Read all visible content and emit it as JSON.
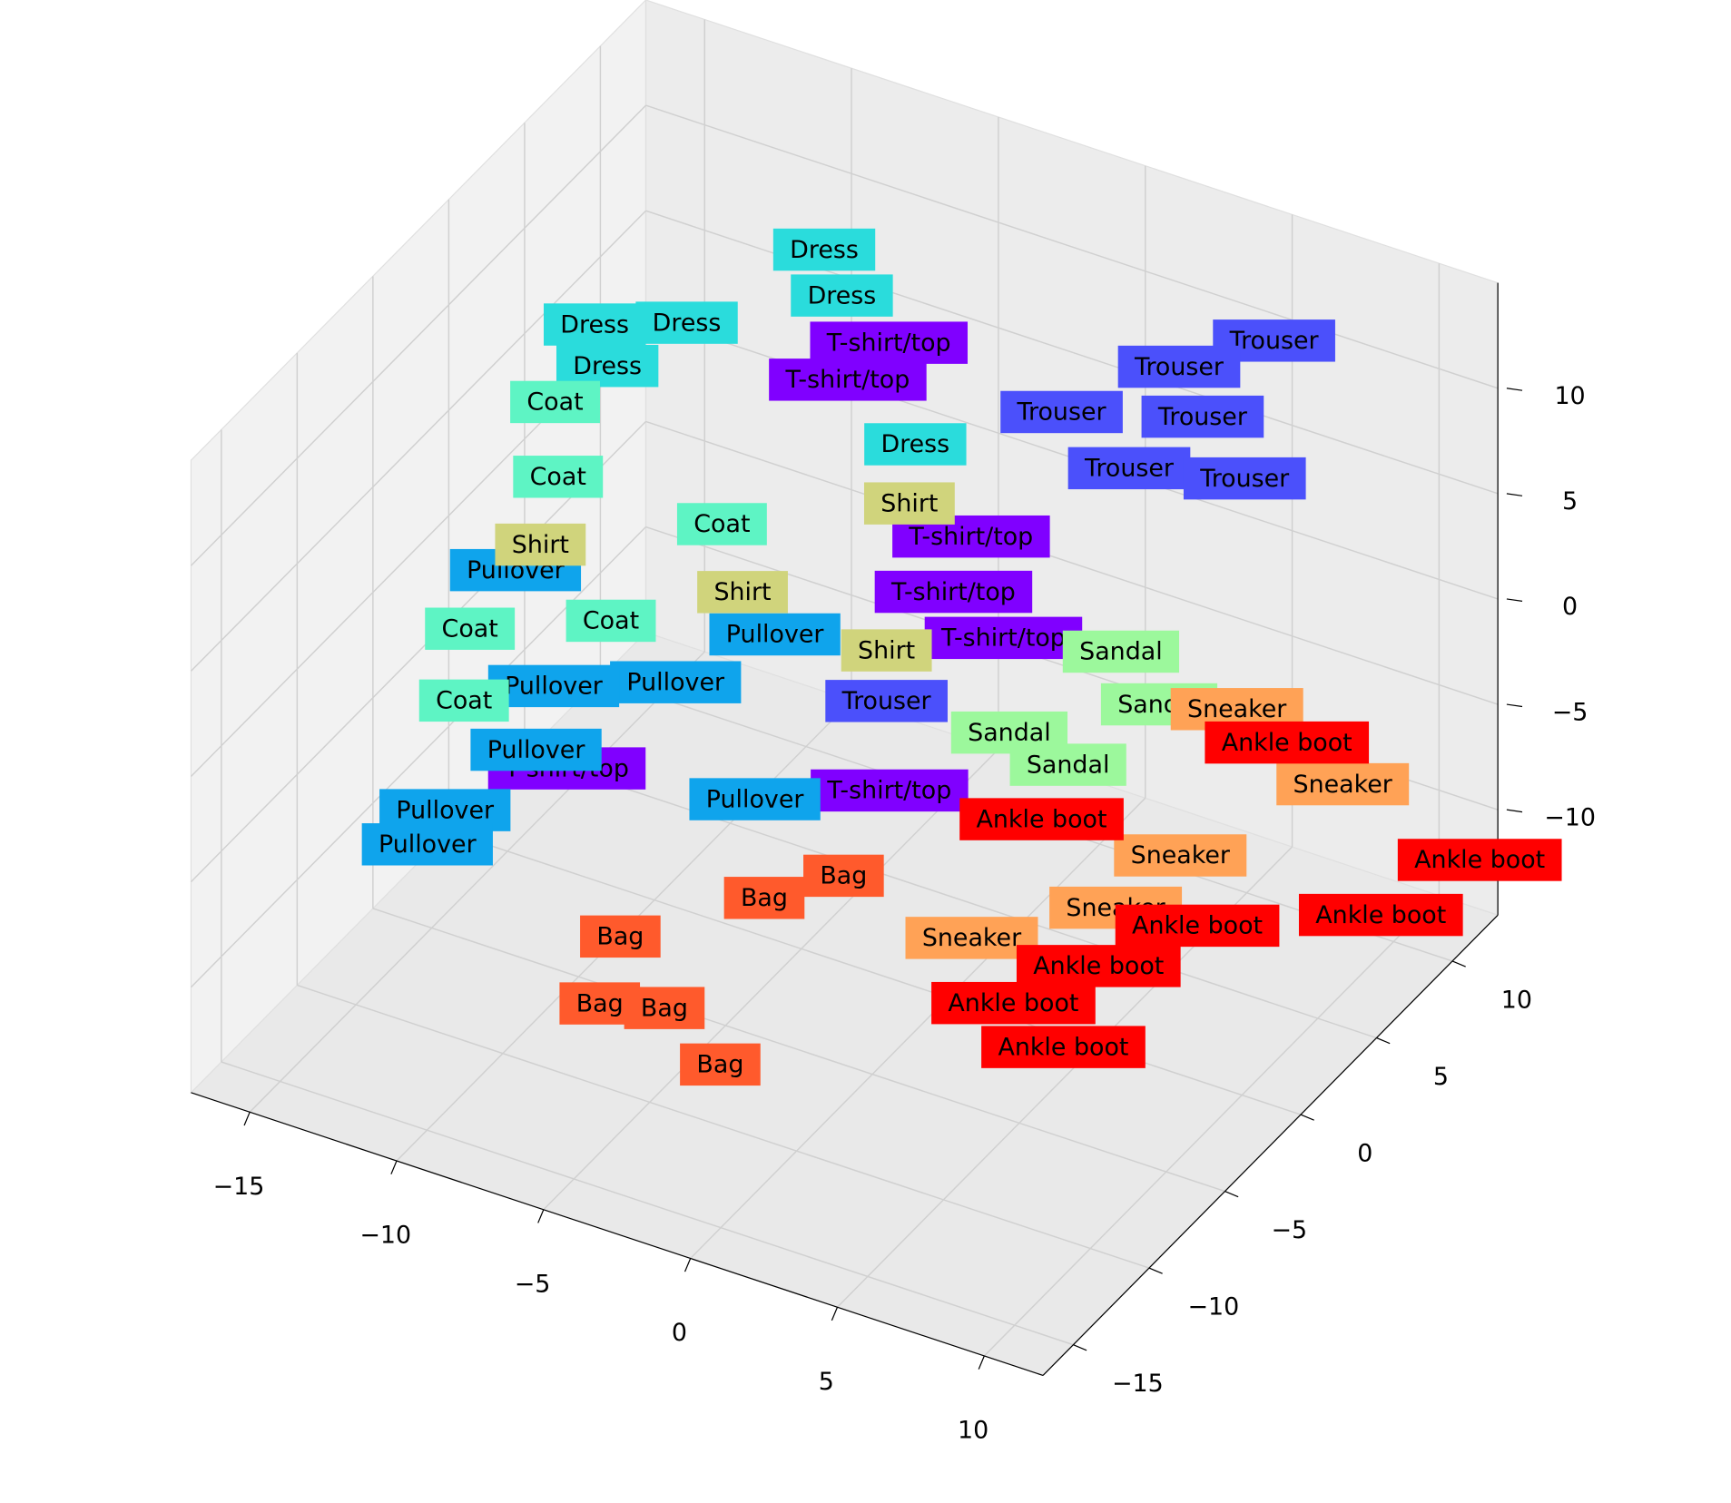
{
  "chart_data": {
    "type": "scatter3d",
    "xlim": [
      -17,
      12
    ],
    "ylim": [
      -17,
      13
    ],
    "zlim": [
      -15,
      15
    ],
    "xticks": [
      {
        "value": -15,
        "label": "−15"
      },
      {
        "value": -10,
        "label": "−10"
      },
      {
        "value": -5,
        "label": "−5"
      },
      0,
      5,
      10
    ],
    "yticks": [
      {
        "value": -15,
        "label": "−15"
      },
      {
        "value": -10,
        "label": "−10"
      },
      {
        "value": -5,
        "label": "−5"
      },
      0,
      5,
      10
    ],
    "zticks": [
      {
        "value": -10,
        "label": "−10"
      },
      {
        "value": -5,
        "label": "−5"
      },
      0,
      5,
      10
    ],
    "grid": true,
    "series": [
      {
        "name": "T-shirt/top",
        "color": "#8000ff",
        "x": [
          -4.6,
          -6,
          -1.8,
          -2.4,
          -0.7,
          -2,
          -10.4
        ],
        "y": [
          5,
          5,
          5,
          5,
          5,
          0,
          -5
        ],
        "z": [
          10.3,
          7.9,
          2.4,
          -0.5,
          -1.9,
          -6.1,
          -5.3
        ]
      },
      {
        "name": "Trouser",
        "color": "#4b50fb",
        "x": [
          4.9,
          2.7,
          -1.3,
          3.5,
          1.0,
          3.9,
          -2.1
        ],
        "y": [
          12,
          10,
          10,
          10,
          10,
          12,
          0
        ],
        "z": [
          9.7,
          8.9,
          4.9,
          6.9,
          3.3,
          2.7,
          -1.9
        ]
      },
      {
        "name": "Pullover",
        "color": "#0fa4ec",
        "x": [
          -10.6,
          -5.9,
          -9.9,
          -13,
          -6.7,
          -9.3,
          -13.6,
          -4
        ],
        "y": [
          -8,
          0,
          -8,
          -8,
          -5,
          -8,
          -8,
          -5
        ],
        "z": [
          6.2,
          -0.5,
          -2.0,
          -6.3,
          0.5,
          1.3,
          -8.2,
          -3.8
        ]
      },
      {
        "name": "Dress",
        "color": "#2adcdc",
        "x": [
          -6.8,
          -6.2,
          -8.9,
          -11.6,
          -3.7,
          -11
        ],
        "y": [
          5,
          5,
          0,
          0,
          5,
          -2
        ],
        "z": [
          13.7,
          11.8,
          12.9,
          9.6,
          5.9,
          13.3
        ]
      },
      {
        "name": "Coat",
        "color": "#5ef4c4",
        "x": [
          -10.8,
          -10.7,
          -7.7,
          -8.9,
          -13.7,
          -13.9
        ],
        "y": [
          -5,
          -5,
          0,
          -5,
          -5,
          -5
        ],
        "z": [
          11.9,
          8.4,
          3.9,
          2.4,
          -0.2,
          -3.7
        ]
      },
      {
        "name": "Sandal",
        "color": "#9cf89c",
        "x": [
          4.6,
          1.5,
          3.3,
          -0.5
        ],
        "y": [
          5,
          5,
          5,
          5
        ],
        "z": [
          -2.6,
          -6.9,
          -0.7,
          -6.3
        ]
      },
      {
        "name": "Shirt",
        "color": "#d0d47c",
        "x": [
          -7,
          -3.9,
          -2.1,
          -11.3
        ],
        "y": [
          0,
          5,
          0,
          -5
        ],
        "z": [
          1.0,
          3.0,
          0.5,
          4.9
        ]
      },
      {
        "name": "Sneaker",
        "color": "#ffa256",
        "x": [
          0.8,
          5.7,
          7.9,
          9.3,
          5.7
        ],
        "y": [
          0,
          0,
          0,
          8,
          8
        ],
        "z": [
          -11.8,
          -8.1,
          -4.6,
          -6.4,
          -4.5
        ]
      },
      {
        "name": "Bag",
        "color": "#ff5a2c",
        "x": [
          -6.0,
          -4.5,
          -2.6,
          -6.7,
          -1.1,
          1.6
        ],
        "y": [
          -10,
          -10,
          -10,
          -10,
          -10,
          -10
        ],
        "z": [
          -7.6,
          -10.3,
          -12.1,
          -11.1,
          -3.5,
          -1.2
        ]
      },
      {
        "name": "Ankle boot",
        "color": "#ff0000",
        "x": [
          0.6,
          4.8,
          6.5,
          11.9,
          10.6,
          5.9,
          7.4,
          7.7
        ],
        "y": [
          5,
          -5,
          -5,
          12,
          8,
          5,
          8,
          -5
        ],
        "z": [
          -9.9,
          -9.4,
          -10.7,
          -11.7,
          -12,
          -12.5,
          -5.3,
          -6.3
        ]
      }
    ]
  }
}
